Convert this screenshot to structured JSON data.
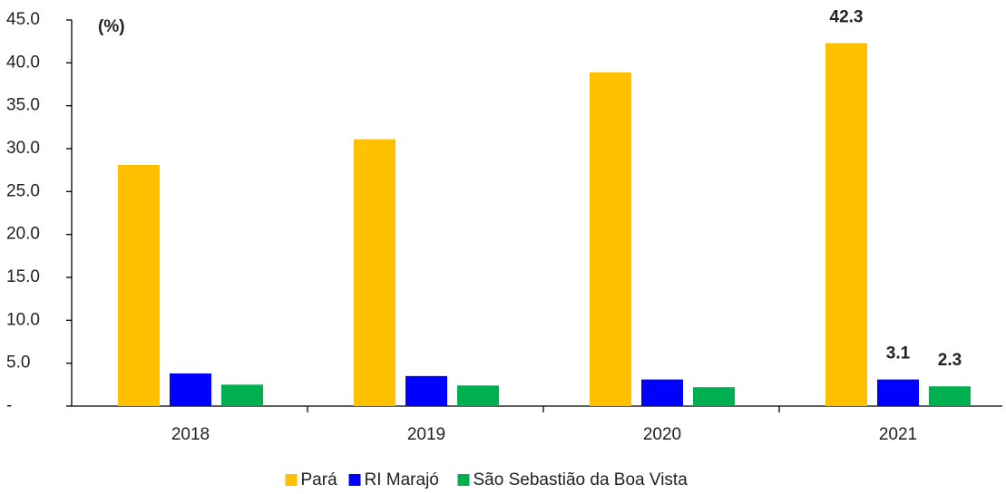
{
  "chart_data": {
    "type": "bar",
    "annotation": "(%)",
    "categories": [
      "2018",
      "2019",
      "2020",
      "2021"
    ],
    "series": [
      {
        "name": "Pará",
        "color": "#ffc000",
        "values": [
          28.1,
          31.1,
          38.9,
          42.3
        ],
        "value_labels": [
          null,
          null,
          null,
          "42.3"
        ]
      },
      {
        "name": "RI Marajó",
        "color": "#0000ff",
        "values": [
          3.8,
          3.5,
          3.1,
          3.1
        ],
        "value_labels": [
          null,
          null,
          null,
          "3.1"
        ]
      },
      {
        "name": "São Sebastião da Boa Vista",
        "color": "#00b050",
        "values": [
          2.5,
          2.4,
          2.2,
          2.3
        ],
        "value_labels": [
          null,
          null,
          null,
          "2.3"
        ]
      }
    ],
    "ylim": [
      0,
      45
    ],
    "yticks": [
      {
        "value": 0,
        "label": "-"
      },
      {
        "value": 5,
        "label": "5.0"
      },
      {
        "value": 10,
        "label": "10.0"
      },
      {
        "value": 15,
        "label": "15.0"
      },
      {
        "value": 20,
        "label": "20.0"
      },
      {
        "value": 25,
        "label": "25.0"
      },
      {
        "value": 30,
        "label": "30.0"
      },
      {
        "value": 35,
        "label": "35.0"
      },
      {
        "value": 40,
        "label": "40.0"
      },
      {
        "value": 45,
        "label": "45.0"
      }
    ],
    "legend": "bottom"
  }
}
